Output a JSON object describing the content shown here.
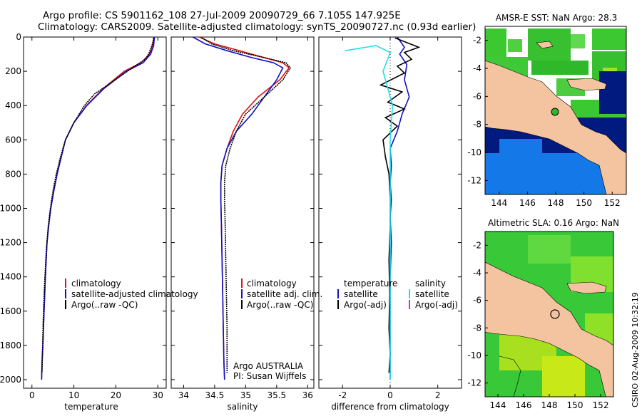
{
  "header": {
    "line1": "Argo profile: CS 5901162_108 27-Jul-2009 20090729_66 7.105S 147.925E",
    "line2": "Climatology: CARS2009. Satellite-adjusted climatology: synTS_20090727.nc (0.93d earlier)"
  },
  "colors": {
    "climatology": "#dd1111",
    "satellite": "#1010c8",
    "argo": "#000000",
    "cyan": "#22e0e8",
    "magenta": "#dd22dd",
    "land": "#f4c4a0",
    "ocean_dark": "#001a80",
    "ocean_blue": "#1478e8"
  },
  "footer": {
    "credit": "CSIRO 02-Aug-2009 10:32:19"
  },
  "annotations": {
    "argo_country": "Argo AUSTRALIA",
    "pi": "PI: Susan Wijffels"
  },
  "chart_data": [
    {
      "type": "line",
      "xlabel": "temperature",
      "ylabel": "",
      "xlim": [
        -2,
        32
      ],
      "ylim": [
        2050,
        0
      ],
      "xticks": [
        0,
        10,
        20,
        30
      ],
      "yticks": [
        0,
        200,
        400,
        600,
        800,
        1000,
        1200,
        1400,
        1600,
        1800,
        2000
      ],
      "legend": [
        "climatology",
        "satellite-adjusted climatology",
        "Argo(..raw -QC)"
      ],
      "series": [
        {
          "name": "climatology",
          "x": [
            29.0,
            28.8,
            28.0,
            26.0,
            22.0,
            17.0,
            13.0,
            10.0,
            8.0,
            7.0,
            6.0,
            5.2,
            4.5,
            4.0,
            3.6,
            3.2,
            2.9,
            2.6,
            2.4,
            2.3
          ],
          "y": [
            0,
            50,
            100,
            150,
            200,
            300,
            400,
            500,
            600,
            700,
            800,
            900,
            1000,
            1100,
            1200,
            1400,
            1600,
            1800,
            1900,
            2000
          ]
        },
        {
          "name": "satellite",
          "x": [
            29.2,
            29.0,
            28.3,
            26.5,
            22.5,
            17.2,
            13.1,
            10.0,
            8.0,
            7.0,
            6.0,
            5.2,
            4.5,
            4.0,
            3.6,
            3.2,
            2.9,
            2.6,
            2.4,
            2.3
          ],
          "y": [
            0,
            50,
            100,
            150,
            200,
            300,
            400,
            500,
            600,
            700,
            800,
            900,
            1000,
            1100,
            1200,
            1400,
            1600,
            1800,
            1900,
            2000
          ]
        },
        {
          "name": "argo",
          "x": [
            29.1,
            28.6,
            27.8,
            27.0,
            24.5,
            21.0,
            17.5,
            15.0,
            12.5,
            10.0,
            8.0,
            6.8,
            5.8,
            5.0,
            4.4,
            3.9,
            3.4,
            3.0,
            2.7,
            2.5,
            2.4
          ],
          "y": [
            5,
            50,
            100,
            130,
            170,
            230,
            290,
            330,
            400,
            500,
            600,
            700,
            800,
            900,
            1000,
            1100,
            1250,
            1450,
            1650,
            1850,
            1960
          ]
        }
      ]
    },
    {
      "type": "line",
      "xlabel": "salinity",
      "ylabel": "",
      "xlim": [
        33.8,
        36.1
      ],
      "ylim": [
        2050,
        0
      ],
      "xticks": [
        34,
        34.5,
        35,
        35.5,
        36
      ],
      "legend": [
        "climatology",
        "satellite adj. clim.",
        "Argo(..raw -QC)"
      ],
      "series": [
        {
          "name": "climatology",
          "x": [
            34.25,
            34.5,
            34.9,
            35.3,
            35.6,
            35.7,
            35.55,
            35.2,
            34.95,
            34.8,
            34.7,
            34.62,
            34.6,
            34.6,
            34.61,
            34.62,
            34.63,
            34.64,
            34.65,
            34.66
          ],
          "y": [
            0,
            40,
            80,
            120,
            150,
            180,
            250,
            350,
            450,
            550,
            650,
            750,
            850,
            950,
            1100,
            1300,
            1500,
            1700,
            1900,
            2000
          ]
        },
        {
          "name": "satellite",
          "x": [
            34.15,
            34.35,
            34.7,
            35.1,
            35.45,
            35.6,
            35.5,
            35.3,
            35.1,
            34.85,
            34.7,
            34.62,
            34.6,
            34.6,
            34.61,
            34.62,
            34.63,
            34.64,
            34.65,
            34.66
          ],
          "y": [
            0,
            40,
            80,
            120,
            150,
            180,
            250,
            350,
            450,
            550,
            650,
            750,
            850,
            950,
            1100,
            1300,
            1500,
            1700,
            1900,
            2000
          ]
        },
        {
          "name": "argo",
          "x": [
            34.3,
            34.45,
            34.8,
            35.3,
            35.65,
            35.72,
            35.6,
            35.3,
            35.0,
            34.85,
            34.75,
            34.68,
            34.66,
            34.66,
            34.67,
            34.68,
            34.69,
            34.7,
            34.7,
            34.7
          ],
          "y": [
            5,
            40,
            80,
            120,
            150,
            180,
            250,
            350,
            450,
            550,
            650,
            750,
            850,
            950,
            1100,
            1300,
            1500,
            1700,
            1900,
            1960
          ]
        }
      ]
    },
    {
      "type": "line",
      "xlabel": "difference from climatology",
      "ylabel": "",
      "xlim": [
        -3.0,
        3.0
      ],
      "ylim": [
        2050,
        0
      ],
      "xticks": [
        -2,
        0,
        2
      ],
      "legend_headers": [
        "temperature",
        "salinity"
      ],
      "legend": [
        "satellite",
        "Argo(-adj)",
        "satellite",
        "Argo(-adj)"
      ],
      "series": [
        {
          "name": "satellite",
          "x": [
            0.3,
            0.6,
            0.4,
            0.7,
            0.6,
            0.8,
            0.5,
            0.3,
            0.0,
            0.05,
            0.0,
            0.05,
            0.0,
            0.05,
            0.0,
            0.0,
            0.0,
            0.0,
            0.0,
            0.0
          ],
          "y": [
            0,
            60,
            100,
            160,
            250,
            350,
            450,
            550,
            650,
            750,
            850,
            950,
            1050,
            1200,
            1400,
            1600,
            1800,
            1900,
            1950,
            2000
          ]
        },
        {
          "name": "argo",
          "x": [
            0.2,
            1.2,
            0.6,
            0.9,
            0.3,
            0.6,
            -0.4,
            0.5,
            -0.1,
            0.6,
            -0.2,
            0.3,
            -0.3,
            -0.2,
            -0.05,
            0.0,
            0.0,
            -0.05,
            -0.02,
            -0.05,
            0.0,
            -0.05
          ],
          "y": [
            5,
            60,
            90,
            130,
            170,
            210,
            280,
            320,
            380,
            420,
            470,
            520,
            600,
            700,
            800,
            950,
            1100,
            1300,
            1500,
            1700,
            1850,
            1960
          ]
        },
        {
          "name": "satellite",
          "x": [
            -1.9,
            -0.6,
            0.0,
            -0.3,
            0.1,
            0.0,
            0.0,
            0.0,
            0.0,
            0.0,
            0.0,
            0.0
          ],
          "y": [
            80,
            50,
            90,
            200,
            400,
            600,
            800,
            1000,
            1200,
            1500,
            1800,
            2000
          ]
        }
      ]
    },
    {
      "type": "heatmap",
      "title": "AMSR-E SST: NaN Argo: 28.3",
      "xticks": [
        144,
        146,
        148,
        150,
        152
      ],
      "yticks": [
        -2,
        -4,
        -6,
        -8,
        -10,
        -12
      ],
      "xlim": [
        143,
        153
      ],
      "ylim": [
        -13,
        -1
      ],
      "marker": {
        "lon": 147.925,
        "lat": -7.105
      }
    },
    {
      "type": "heatmap",
      "title": "Altimetric SLA: 0.16 Argo: NaN",
      "xticks": [
        144,
        146,
        148,
        150,
        152
      ],
      "yticks": [
        -2,
        -4,
        -6,
        -8,
        -10,
        -12
      ],
      "xlim": [
        143,
        153
      ],
      "ylim": [
        -13,
        -1
      ],
      "marker": {
        "lon": 147.925,
        "lat": -7.105
      }
    }
  ]
}
